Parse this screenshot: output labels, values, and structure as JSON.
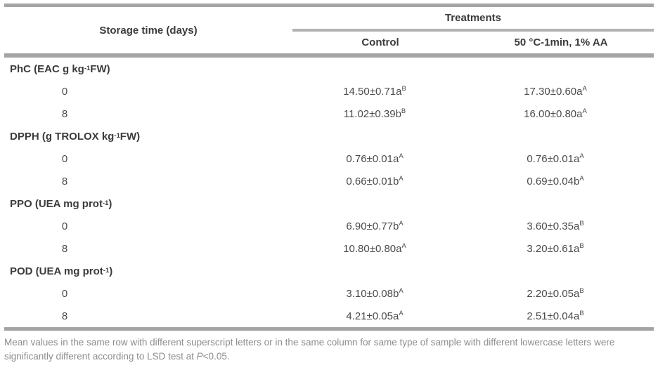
{
  "table": {
    "col1_header": "Storage time (days)",
    "treatments_header": "Treatments",
    "col_headers": {
      "control": "Control",
      "treated": "50 °C-1min, 1% AA"
    },
    "sections": [
      {
        "label": {
          "text": "PhC (EAC g kg",
          "sup": "-1",
          "end": " FW)"
        },
        "rows": [
          {
            "day": "0",
            "control": {
              "text": "14.50±0.71a",
              "sup": "B"
            },
            "treated": {
              "text": "17.30±0.60a",
              "sup": "A"
            }
          },
          {
            "day": "8",
            "control": {
              "text": "11.02±0.39b",
              "sup": "B"
            },
            "treated": {
              "text": "16.00±0.80a",
              "sup": "A"
            }
          }
        ]
      },
      {
        "label": {
          "text": "DPPH (g TROLOX kg",
          "sup": "-1",
          "end": " FW)"
        },
        "rows": [
          {
            "day": "0",
            "control": {
              "text": "0.76±0.01a",
              "sup": "A"
            },
            "treated": {
              "text": "0.76±0.01a",
              "sup": "A"
            }
          },
          {
            "day": "8",
            "control": {
              "text": "0.66±0.01b",
              "sup": "A"
            },
            "treated": {
              "text": "0.69±0.04b",
              "sup": "A"
            }
          }
        ]
      },
      {
        "label": {
          "text": "PPO (UEA mg prot",
          "sup": "-1",
          "end": ")"
        },
        "rows": [
          {
            "day": "0",
            "control": {
              "text": "6.90±0.77b",
              "sup": "A"
            },
            "treated": {
              "text": "3.60±0.35a",
              "sup": "B"
            }
          },
          {
            "day": "8",
            "control": {
              "text": "10.80±0.80a",
              "sup": "A"
            },
            "treated": {
              "text": "3.20±0.61a",
              "sup": "B"
            }
          }
        ]
      },
      {
        "label": {
          "text": "POD (UEA mg prot",
          "sup": "-1",
          "end": ")"
        },
        "rows": [
          {
            "day": "0",
            "control": {
              "text": "3.10±0.08b",
              "sup": "A"
            },
            "treated": {
              "text": "2.20±0.05a",
              "sup": "B"
            }
          },
          {
            "day": "8",
            "control": {
              "text": "4.21±0.05a",
              "sup": "A"
            },
            "treated": {
              "text": "2.51±0.04a",
              "sup": "B"
            }
          }
        ]
      }
    ]
  },
  "footnote": {
    "text_before": "Mean values in the same row with different superscript letters or in the same column for same type of sample with different lowercase letters were significantly different according to LSD test at ",
    "italic_p": "P",
    "text_after": "<0.05."
  },
  "colors": {
    "rule_gray": "#a4a4a4",
    "sub_rule_gray": "#b2b2b2",
    "header_text": "#3b3b3b",
    "body_text": "#4a4a4a",
    "footnote_text": "#8d8d8d"
  },
  "chart_data": {
    "type": "table",
    "columns": [
      "Storage time (days)",
      "Control",
      "50 °C-1min, 1% AA"
    ],
    "rows": [
      [
        "PhC (EAC g kg-1 FW)",
        "",
        ""
      ],
      [
        "0",
        "14.50±0.71aB",
        "17.30±0.60aA"
      ],
      [
        "8",
        "11.02±0.39bB",
        "16.00±0.80aA"
      ],
      [
        "DPPH (g TROLOX kg-1 FW)",
        "",
        ""
      ],
      [
        "0",
        "0.76±0.01aA",
        "0.76±0.01aA"
      ],
      [
        "8",
        "0.66±0.01bA",
        "0.69±0.04bA"
      ],
      [
        "PPO (UEA mg prot-1)",
        "",
        ""
      ],
      [
        "0",
        "6.90±0.77bA",
        "3.60±0.35aB"
      ],
      [
        "8",
        "10.80±0.80aA",
        "3.20±0.61aB"
      ],
      [
        "POD (UEA mg prot-1)",
        "",
        ""
      ],
      [
        "0",
        "3.10±0.08bA",
        "2.20±0.05aB"
      ],
      [
        "8",
        "4.21±0.05aA",
        "2.51±0.04aB"
      ]
    ]
  }
}
